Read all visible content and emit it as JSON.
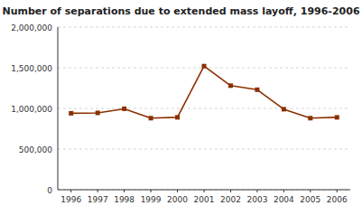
{
  "chart_data": {
    "type": "line",
    "title": "Number of separations due to extended mass layoff, 1996-2006",
    "x": [
      1996,
      1997,
      1998,
      1999,
      2000,
      2001,
      2002,
      2003,
      2004,
      2005,
      2006
    ],
    "values": [
      940000,
      945000,
      995000,
      880000,
      890000,
      1520000,
      1280000,
      1230000,
      990000,
      880000,
      890000
    ],
    "color": "#8B3000",
    "marker": "square",
    "xlim": [
      1995.5,
      2006.5
    ],
    "xticks": [
      1996,
      1997,
      1998,
      1999,
      2000,
      2001,
      2002,
      2003,
      2004,
      2005,
      2006
    ],
    "ylim": [
      0,
      2000000
    ],
    "yticks": [
      0,
      {
        "value": 500000,
        "label": "500,000"
      },
      {
        "value": 1000000,
        "label": "1,000,000"
      },
      {
        "value": 1500000,
        "label": "1,500,000"
      },
      {
        "value": 2000000,
        "label": "2,000,000"
      }
    ],
    "grid": true
  }
}
